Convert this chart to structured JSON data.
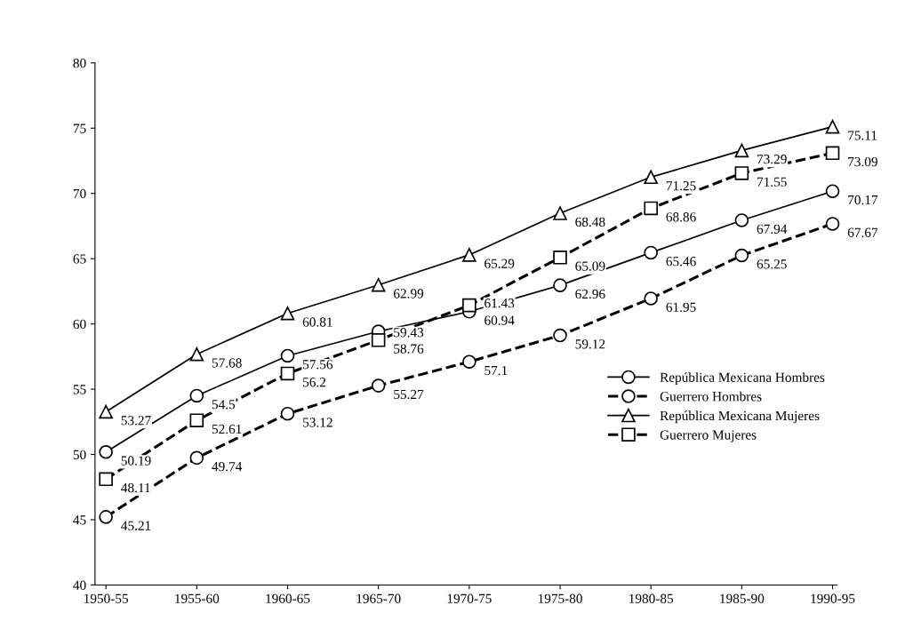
{
  "chart_data": {
    "type": "line",
    "categories": [
      "1950-55",
      "1955-60",
      "1960-65",
      "1965-70",
      "1970-75",
      "1975-80",
      "1980-85",
      "1985-90",
      "1990-95"
    ],
    "series": [
      {
        "name": "República Mexicana Hombres",
        "color": "#000000",
        "marker": "circle",
        "line_style": "solid",
        "values": [
          50.19,
          54.5,
          57.56,
          59.43,
          60.94,
          62.96,
          65.46,
          67.94,
          70.17
        ]
      },
      {
        "name": "Guerrero Hombres",
        "color": "#000000",
        "marker": "circle",
        "line_style": "dashed",
        "values": [
          45.21,
          49.74,
          53.12,
          55.27,
          57.1,
          59.12,
          61.95,
          65.25,
          67.67
        ]
      },
      {
        "name": "República Mexicana Mujeres",
        "color": "#000000",
        "marker": "triangle",
        "line_style": "solid",
        "values": [
          53.27,
          57.68,
          60.81,
          62.99,
          65.29,
          68.48,
          71.25,
          73.29,
          75.11
        ]
      },
      {
        "name": "Guerrero Mujeres",
        "color": "#000000",
        "marker": "square",
        "line_style": "dashed",
        "values": [
          48.11,
          52.61,
          56.2,
          58.76,
          61.43,
          65.09,
          68.86,
          71.55,
          73.09
        ]
      }
    ],
    "ylim": [
      40,
      80
    ],
    "yticks": [
      40,
      45,
      50,
      55,
      60,
      65,
      70,
      75,
      80
    ],
    "data_labels": true,
    "grid": false,
    "legend": "lower right"
  }
}
